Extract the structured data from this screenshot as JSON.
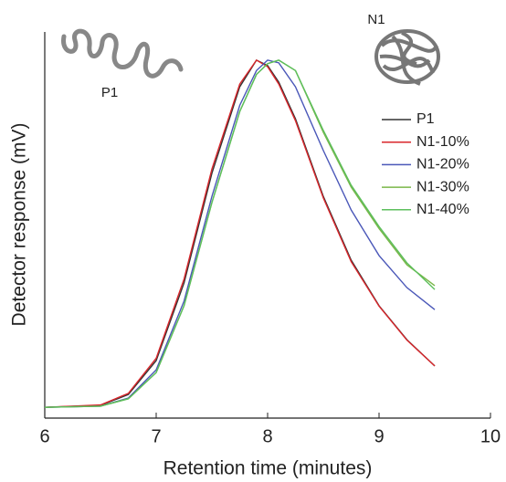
{
  "chart_data": {
    "type": "line",
    "x_label": "Retention time (minutes)",
    "y_label": "Detector response (mV)",
    "annotations": [
      "P1",
      "N1"
    ],
    "x": [
      6,
      6.5,
      6.75,
      7,
      7.25,
      7.5,
      7.75,
      7.9,
      8,
      8.1,
      8.25,
      8.5,
      8.75,
      9,
      9.25,
      9.5
    ],
    "series": [
      {
        "name": "P1",
        "color": "#333333",
        "values": [
          0.028,
          0.033,
          0.061,
          0.149,
          0.35,
          0.634,
          0.858,
          0.927,
          0.913,
          0.87,
          0.775,
          0.574,
          0.409,
          0.291,
          0.203,
          0.135
        ]
      },
      {
        "name": "N1-10%",
        "color": "#d9262b",
        "values": [
          0.028,
          0.034,
          0.064,
          0.155,
          0.36,
          0.645,
          0.865,
          0.927,
          0.91,
          0.865,
          0.77,
          0.57,
          0.405,
          0.29,
          0.202,
          0.135
        ]
      },
      {
        "name": "N1-20%",
        "color": "#4a57b8",
        "values": [
          0.028,
          0.031,
          0.052,
          0.125,
          0.303,
          0.574,
          0.81,
          0.9,
          0.927,
          0.92,
          0.858,
          0.693,
          0.539,
          0.421,
          0.338,
          0.281
        ]
      },
      {
        "name": "N1-30%",
        "color": "#7ab648",
        "values": [
          0.028,
          0.031,
          0.05,
          0.118,
          0.291,
          0.558,
          0.794,
          0.89,
          0.918,
          0.927,
          0.9,
          0.74,
          0.598,
          0.491,
          0.397,
          0.343
        ]
      },
      {
        "name": "N1-40%",
        "color": "#5cbf5c",
        "values": [
          0.028,
          0.031,
          0.05,
          0.118,
          0.291,
          0.558,
          0.794,
          0.89,
          0.918,
          0.927,
          0.9,
          0.745,
          0.603,
          0.496,
          0.402,
          0.333
        ]
      }
    ],
    "xlim": [
      6,
      10
    ],
    "xticks": [
      6,
      7,
      8,
      9,
      10
    ],
    "ylim": [
      0,
      1
    ]
  }
}
